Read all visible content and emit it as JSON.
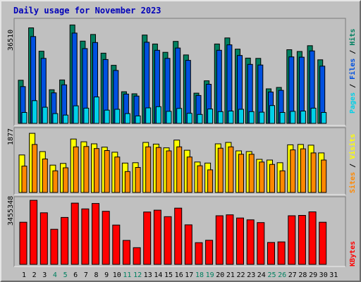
{
  "title": "Daily usage for November 2023",
  "colors": {
    "title": "#0000b8",
    "weekday": "#000000",
    "weekend": "#008060",
    "hits": "#008060",
    "files": "#0050e0",
    "pages": "#00d0e8",
    "visits": "#ffff00",
    "sites": "#ff8800",
    "kbytes": "#ff0000"
  },
  "axis_labels": {
    "top_max": "36510",
    "mid_max": "1877",
    "bottom_max": "3455348"
  },
  "side_labels": {
    "pages": "Pages",
    "files": "Files",
    "hits": "Hits",
    "visits": "Visits",
    "sites": "Sites",
    "kbytes": "KBytes",
    "sep": " / "
  },
  "chart_data": {
    "type": "bar",
    "title": "Daily usage for November 2023",
    "categories": [
      "1",
      "2",
      "3",
      "4",
      "5",
      "6",
      "7",
      "8",
      "9",
      "10",
      "11",
      "12",
      "13",
      "14",
      "15",
      "16",
      "17",
      "18",
      "19",
      "20",
      "21",
      "22",
      "23",
      "24",
      "25",
      "26",
      "27",
      "28",
      "29",
      "30",
      "31"
    ],
    "weekend_days": [
      "4",
      "5",
      "11",
      "12",
      "18",
      "19",
      "25",
      "26"
    ],
    "panels": [
      {
        "id": "top",
        "ymax": 36510,
        "series": [
          {
            "name": "Hits",
            "values": [
              15000,
              33200,
              25100,
              11700,
              15100,
              34200,
              28600,
              30900,
              24400,
              20200,
              11000,
              10300,
              30700,
              27600,
              24700,
              28500,
              23800,
              10500,
              14800,
              27600,
              29700,
              25800,
              22700,
              22600,
              12000,
              12500,
              25600,
              25000,
              27000,
              22100,
              0
            ]
          },
          {
            "name": "Files",
            "values": [
              12800,
              30200,
              22600,
              10600,
              13400,
              31400,
              26000,
              28100,
              22200,
              18400,
              10200,
              9500,
              28200,
              25400,
              22600,
              26200,
              21900,
              9700,
              13600,
              25400,
              27300,
              23600,
              20500,
              20300,
              10900,
              11500,
              23100,
              23000,
              25200,
              19900,
              0
            ]
          },
          {
            "name": "Pages",
            "values": [
              3800,
              7900,
              5600,
              3400,
              2900,
              6100,
              5300,
              9200,
              4600,
              4900,
              3400,
              2600,
              5400,
              5800,
              4200,
              5200,
              3500,
              3100,
              5000,
              4100,
              4300,
              4900,
              4100,
              3900,
              6200,
              3800,
              4200,
              4300,
              5300,
              3800,
              0
            ]
          }
        ]
      },
      {
        "id": "mid",
        "ymax": 1877,
        "series": [
          {
            "name": "Visits",
            "values": [
              1110,
              1750,
              1210,
              810,
              860,
              1580,
              1500,
              1440,
              1340,
              1190,
              870,
              880,
              1480,
              1430,
              1320,
              1550,
              1250,
              900,
              870,
              1440,
              1480,
              1230,
              1210,
              980,
              960,
              880,
              1410,
              1420,
              1400,
              1170,
              0
            ]
          },
          {
            "name": "Sites",
            "values": [
              780,
              1420,
              990,
              640,
              730,
              1350,
              1360,
              1300,
              1240,
              1050,
              620,
              740,
              1350,
              1330,
              1230,
              1350,
              1050,
              790,
              670,
              1310,
              1350,
              1130,
              1130,
              900,
              830,
              640,
              1260,
              1290,
              1170,
              960,
              0
            ]
          }
        ]
      },
      {
        "id": "bottom",
        "ymax": 3455348,
        "series": [
          {
            "name": "KBytes",
            "values": [
              2270000,
              3450000,
              2780000,
              1890000,
              2530000,
              3300000,
              2990000,
              3280000,
              2860000,
              2120000,
              1290000,
              900000,
              2820000,
              2920000,
              2570000,
              3030000,
              2130000,
              1170000,
              1300000,
              2620000,
              2670000,
              2500000,
              2400000,
              2250000,
              1180000,
              1210000,
              2620000,
              2640000,
              2830000,
              2270000,
              0
            ]
          }
        ]
      }
    ]
  }
}
